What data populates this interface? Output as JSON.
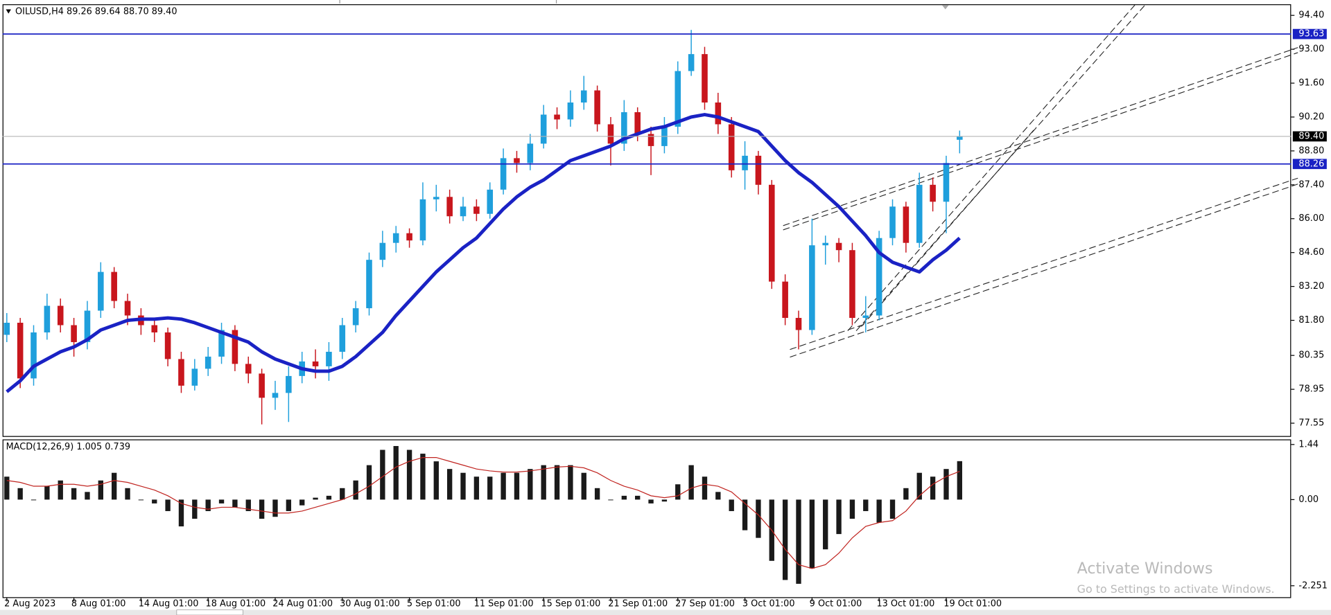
{
  "chart_data": [
    {
      "type": "candlestick",
      "title": "OILUSD,H4  89.26 89.64 88.70 89.40",
      "categories": [
        "2 Aug 2023",
        null,
        null,
        null,
        null,
        "8 Aug 01:00",
        null,
        null,
        null,
        null,
        "14 Aug 01:00",
        null,
        null,
        null,
        null,
        "18 Aug 01:00",
        null,
        null,
        null,
        null,
        "24 Aug 01:00",
        null,
        null,
        null,
        null,
        "30 Aug 01:00",
        null,
        null,
        null,
        null,
        "5 Sep 01:00",
        null,
        null,
        null,
        null,
        "11 Sep 01:00",
        null,
        null,
        null,
        null,
        "15 Sep 01:00",
        null,
        null,
        null,
        null,
        "21 Sep 01:00",
        null,
        null,
        null,
        null,
        "27 Sep 01:00",
        null,
        null,
        null,
        null,
        "3 Oct 01:00",
        null,
        null,
        null,
        null,
        "9 Oct 01:00",
        null,
        null,
        null,
        null,
        "13 Oct 01:00",
        null,
        null,
        null,
        null,
        "19 Oct 01:00",
        null
      ],
      "open": [
        81.2,
        81.7,
        79.4,
        81.3,
        82.4,
        81.6,
        80.9,
        82.2,
        83.8,
        82.6,
        82.0,
        81.6,
        81.3,
        80.2,
        79.1,
        79.8,
        80.3,
        81.4,
        80.0,
        79.6,
        78.6,
        78.8,
        79.5,
        80.1,
        79.9,
        80.5,
        81.6,
        82.3,
        84.3,
        85.0,
        85.4,
        85.1,
        86.8,
        86.9,
        86.1,
        86.5,
        86.2,
        87.2,
        88.5,
        88.3,
        89.1,
        90.3,
        90.1,
        90.8,
        91.3,
        89.9,
        89.1,
        90.4,
        89.5,
        89.0,
        89.8,
        92.1,
        92.8,
        90.8,
        89.9,
        88.0,
        88.6,
        87.4,
        83.4,
        81.9,
        81.4,
        84.9,
        85.0,
        84.7,
        81.9,
        82.0,
        85.2,
        86.5,
        85.0,
        87.4,
        86.7,
        89.26
      ],
      "high": [
        82.1,
        81.9,
        81.6,
        82.9,
        82.7,
        81.9,
        82.6,
        84.2,
        84.0,
        82.9,
        82.3,
        81.9,
        81.5,
        80.5,
        80.2,
        80.7,
        81.7,
        81.6,
        80.3,
        79.8,
        79.3,
        79.9,
        80.5,
        80.6,
        80.9,
        81.9,
        82.6,
        84.6,
        85.5,
        85.7,
        85.6,
        87.5,
        87.4,
        87.2,
        86.9,
        86.8,
        87.5,
        88.9,
        88.8,
        89.5,
        90.7,
        90.6,
        91.3,
        91.9,
        91.5,
        90.2,
        90.9,
        90.6,
        89.8,
        90.2,
        92.5,
        93.8,
        93.1,
        91.2,
        90.2,
        89.2,
        88.8,
        87.6,
        83.7,
        82.2,
        86.0,
        85.3,
        85.2,
        85.0,
        82.8,
        85.5,
        86.8,
        86.7,
        87.9,
        87.7,
        88.6,
        89.64
      ],
      "low": [
        80.9,
        79.0,
        79.1,
        81.0,
        81.3,
        80.3,
        80.6,
        81.9,
        82.3,
        81.6,
        81.2,
        80.9,
        79.9,
        78.8,
        78.9,
        79.5,
        80.0,
        79.7,
        79.2,
        77.5,
        78.1,
        77.6,
        79.2,
        79.4,
        79.3,
        80.2,
        81.3,
        82.0,
        84.0,
        84.6,
        84.8,
        84.9,
        86.3,
        85.8,
        85.9,
        85.9,
        86.0,
        87.0,
        87.9,
        88.0,
        88.9,
        89.7,
        89.8,
        90.5,
        89.6,
        88.2,
        88.8,
        89.2,
        87.8,
        88.7,
        89.5,
        91.9,
        90.5,
        89.5,
        87.7,
        87.2,
        87.0,
        83.1,
        81.6,
        80.6,
        81.2,
        84.1,
        84.2,
        81.6,
        81.3,
        81.8,
        84.9,
        84.6,
        84.8,
        86.3,
        85.4,
        88.7
      ],
      "close": [
        81.7,
        79.4,
        81.3,
        82.4,
        81.6,
        80.9,
        82.2,
        83.8,
        82.6,
        82.0,
        81.6,
        81.3,
        80.2,
        79.1,
        79.8,
        80.3,
        81.4,
        80.0,
        79.6,
        78.6,
        78.8,
        79.5,
        80.1,
        79.9,
        80.5,
        81.6,
        82.3,
        84.3,
        85.0,
        85.4,
        85.1,
        86.8,
        86.9,
        86.1,
        86.5,
        86.2,
        87.2,
        88.5,
        88.3,
        89.1,
        90.3,
        90.1,
        90.8,
        91.3,
        89.9,
        89.1,
        90.4,
        89.5,
        89.0,
        89.8,
        92.1,
        92.8,
        90.8,
        89.9,
        88.0,
        88.6,
        87.4,
        83.4,
        81.9,
        81.4,
        84.9,
        85.0,
        84.7,
        81.9,
        82.0,
        85.2,
        86.5,
        85.0,
        87.4,
        86.7,
        88.3,
        89.4
      ],
      "up_color": "#1f9fdc",
      "down_color": "#c8161d",
      "moving_average": {
        "color": "#1a22c4",
        "values": [
          78.85,
          79.3,
          79.9,
          80.2,
          80.5,
          80.7,
          81.0,
          81.4,
          81.6,
          81.8,
          81.85,
          81.85,
          81.9,
          81.85,
          81.7,
          81.5,
          81.3,
          81.1,
          80.9,
          80.5,
          80.2,
          80.0,
          79.8,
          79.7,
          79.7,
          79.9,
          80.3,
          80.8,
          81.3,
          82.0,
          82.6,
          83.2,
          83.8,
          84.3,
          84.8,
          85.2,
          85.8,
          86.4,
          86.9,
          87.3,
          87.6,
          88.0,
          88.4,
          88.6,
          88.8,
          89.0,
          89.3,
          89.5,
          89.7,
          89.8,
          90.0,
          90.2,
          90.3,
          90.2,
          90.0,
          89.8,
          89.6,
          89.0,
          88.4,
          87.9,
          87.5,
          87.0,
          86.5,
          85.9,
          85.3,
          84.6,
          84.2,
          84.0,
          83.8,
          84.3,
          84.7,
          85.2
        ]
      },
      "ylim": [
        77.02,
        94.86
      ],
      "yticks": [
        {
          "value": 94.4,
          "label": "94.40"
        },
        {
          "value": 93.0,
          "label": "93.00"
        },
        {
          "value": 91.6,
          "label": "91.60"
        },
        {
          "value": 90.2,
          "label": "90.20"
        },
        {
          "value": 88.8,
          "label": "88.80"
        },
        {
          "value": 87.4,
          "label": "87.40"
        },
        {
          "value": 86.0,
          "label": "86.00"
        },
        {
          "value": 84.6,
          "label": "84.60"
        },
        {
          "value": 83.2,
          "label": "83.20"
        },
        {
          "value": 81.8,
          "label": "81.80"
        },
        80.35,
        78.95,
        77.55
      ],
      "hlines": [
        93.63,
        88.26
      ],
      "hline_color": "#1a22c4",
      "current_price": {
        "value": 89.4,
        "label": "89.40"
      }
    },
    {
      "type": "macd",
      "title": "MACD(12,26,9) 1.005 0.739",
      "histogram": {
        "color": "#1a1a1a",
        "values": [
          0.6,
          0.3,
          0.0,
          0.35,
          0.5,
          0.3,
          0.2,
          0.5,
          0.7,
          0.3,
          0.0,
          -0.1,
          -0.3,
          -0.7,
          -0.5,
          -0.3,
          -0.1,
          -0.2,
          -0.3,
          -0.5,
          -0.45,
          -0.3,
          -0.15,
          0.05,
          0.1,
          0.3,
          0.5,
          0.9,
          1.3,
          1.4,
          1.3,
          1.2,
          1.0,
          0.8,
          0.7,
          0.6,
          0.6,
          0.7,
          0.7,
          0.8,
          0.9,
          0.9,
          0.9,
          0.7,
          0.3,
          0.0,
          0.1,
          0.1,
          -0.1,
          -0.05,
          0.4,
          0.9,
          0.6,
          0.2,
          -0.3,
          -0.8,
          -1.0,
          -1.6,
          -2.1,
          -2.2,
          -1.8,
          -1.3,
          -0.9,
          -0.5,
          -0.3,
          -0.6,
          -0.5,
          0.3,
          0.7,
          0.6,
          0.8,
          1.005
        ]
      },
      "signal": {
        "color": "#c0231f",
        "values": [
          0.5,
          0.45,
          0.35,
          0.35,
          0.4,
          0.4,
          0.35,
          0.4,
          0.5,
          0.45,
          0.35,
          0.25,
          0.1,
          -0.1,
          -0.2,
          -0.25,
          -0.2,
          -0.2,
          -0.25,
          -0.3,
          -0.35,
          -0.35,
          -0.3,
          -0.2,
          -0.1,
          0.0,
          0.15,
          0.35,
          0.6,
          0.85,
          1.0,
          1.1,
          1.1,
          1.0,
          0.9,
          0.8,
          0.75,
          0.72,
          0.72,
          0.75,
          0.8,
          0.85,
          0.87,
          0.83,
          0.7,
          0.5,
          0.35,
          0.25,
          0.1,
          0.05,
          0.1,
          0.3,
          0.4,
          0.35,
          0.2,
          -0.1,
          -0.4,
          -0.8,
          -1.3,
          -1.7,
          -1.8,
          -1.7,
          -1.4,
          -1.0,
          -0.7,
          -0.6,
          -0.55,
          -0.3,
          0.1,
          0.4,
          0.6,
          0.739
        ]
      },
      "ylim": [
        -2.572,
        1.573
      ],
      "yticks": [
        1.44,
        {
          "value": 0,
          "label": "0.00"
        },
        -2.251
      ]
    }
  ],
  "watermark": {
    "line1": "Activate Windows",
    "line2": "Go to Settings to activate Windows."
  }
}
